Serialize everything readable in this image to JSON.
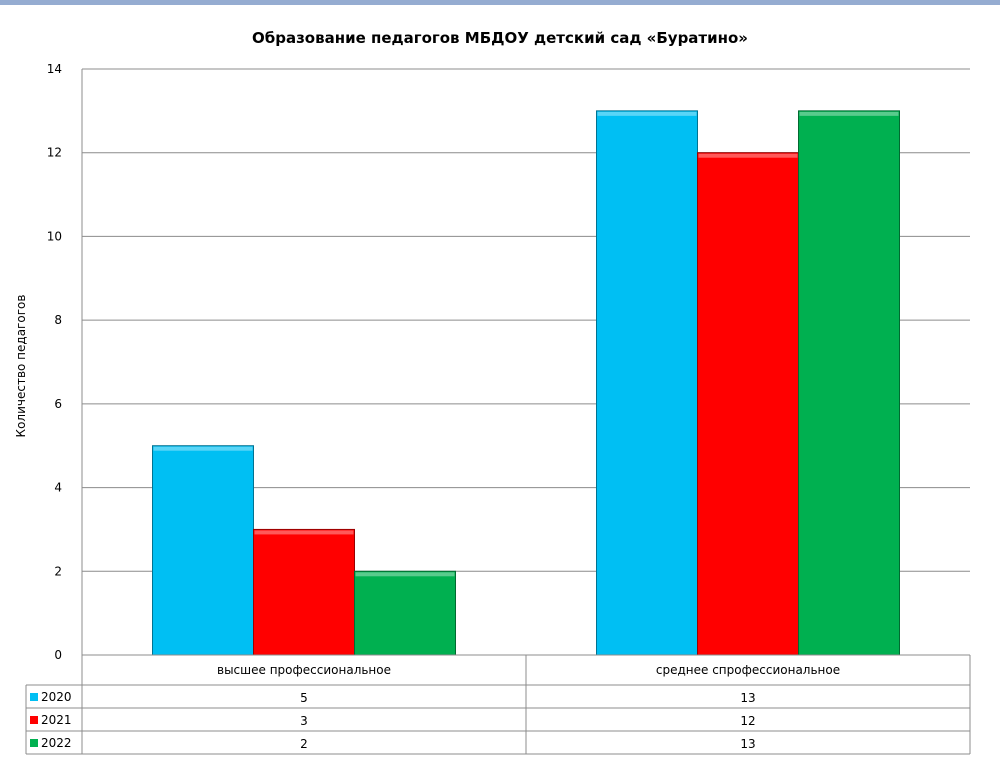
{
  "chart_data": {
    "type": "bar",
    "title": "Образование педагогов МБДОУ детский сад «Буратино»",
    "ylabel": "Количество педагогов",
    "xlabel": "",
    "ylim": [
      0,
      14
    ],
    "yticks": [
      0,
      2,
      4,
      6,
      8,
      10,
      12,
      14
    ],
    "grid": true,
    "legend": "data-table",
    "categories": [
      "высшее профессиональное",
      "среднее спрофессиональное"
    ],
    "series": [
      {
        "name": "2020",
        "values": [
          5,
          13
        ],
        "color": "#00bff3"
      },
      {
        "name": "2021",
        "values": [
          3,
          12
        ],
        "color": "#ff0000"
      },
      {
        "name": "2022",
        "values": [
          2,
          13
        ],
        "color": "#00b050"
      }
    ]
  }
}
